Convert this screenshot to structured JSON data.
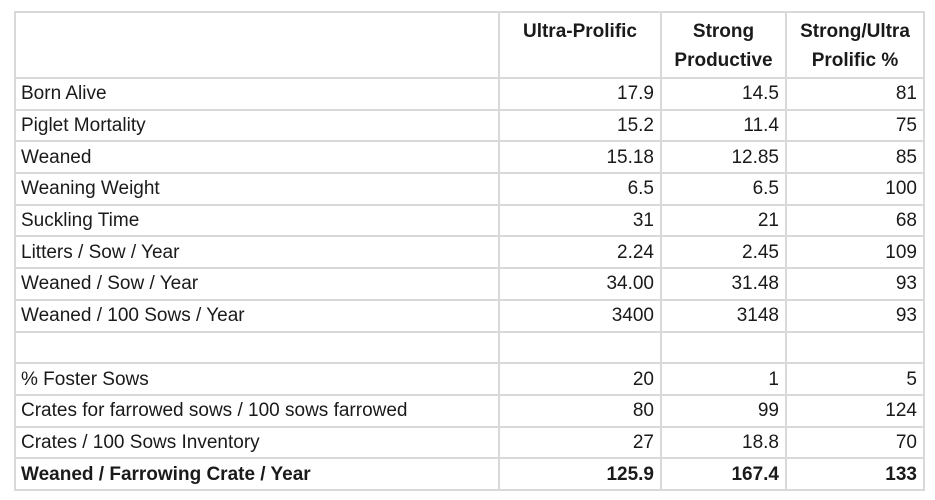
{
  "colors": {
    "border": "#d9d9d9",
    "text": "#1a1a1a",
    "background": "#ffffff"
  },
  "table": {
    "header": {
      "metric": "",
      "ultra_prolific_lines": [
        "Ultra-Prolific"
      ],
      "strong_productive_lines": [
        "Strong",
        "Productive"
      ],
      "ratio_lines": [
        "Strong/Ultra",
        "Prolific %"
      ]
    },
    "rows": [
      {
        "label": "Born Alive",
        "ultra_prolific": "17.9",
        "strong_productive": "14.5",
        "ratio_pct": "81",
        "bold": false,
        "empty": false
      },
      {
        "label": "Piglet Mortality",
        "ultra_prolific": "15.2",
        "strong_productive": "11.4",
        "ratio_pct": "75",
        "bold": false,
        "empty": false
      },
      {
        "label": "Weaned",
        "ultra_prolific": "15.18",
        "strong_productive": "12.85",
        "ratio_pct": "85",
        "bold": false,
        "empty": false
      },
      {
        "label": "Weaning Weight",
        "ultra_prolific": "6.5",
        "strong_productive": "6.5",
        "ratio_pct": "100",
        "bold": false,
        "empty": false
      },
      {
        "label": "Suckling Time",
        "ultra_prolific": "31",
        "strong_productive": "21",
        "ratio_pct": "68",
        "bold": false,
        "empty": false
      },
      {
        "label": "Litters / Sow / Year",
        "ultra_prolific": "2.24",
        "strong_productive": "2.45",
        "ratio_pct": "109",
        "bold": false,
        "empty": false
      },
      {
        "label": "Weaned / Sow / Year",
        "ultra_prolific": "34.00",
        "strong_productive": "31.48",
        "ratio_pct": "93",
        "bold": false,
        "empty": false
      },
      {
        "label": "Weaned / 100 Sows / Year",
        "ultra_prolific": "3400",
        "strong_productive": "3148",
        "ratio_pct": "93",
        "bold": false,
        "empty": false
      },
      {
        "label": "",
        "ultra_prolific": "",
        "strong_productive": "",
        "ratio_pct": "",
        "bold": false,
        "empty": true
      },
      {
        "label": "% Foster Sows",
        "ultra_prolific": "20",
        "strong_productive": "1",
        "ratio_pct": "5",
        "bold": false,
        "empty": false
      },
      {
        "label": "Crates for farrowed sows / 100 sows farrowed",
        "ultra_prolific": "80",
        "strong_productive": "99",
        "ratio_pct": "124",
        "bold": false,
        "empty": false
      },
      {
        "label": "Crates / 100 Sows Inventory",
        "ultra_prolific": "27",
        "strong_productive": "18.8",
        "ratio_pct": "70",
        "bold": false,
        "empty": false
      },
      {
        "label": "Weaned / Farrowing Crate / Year",
        "ultra_prolific": "125.9",
        "strong_productive": "167.4",
        "ratio_pct": "133",
        "bold": true,
        "empty": false
      }
    ]
  },
  "chart_data": {
    "type": "table",
    "columns": [
      "",
      "Ultra-Prolific",
      "Strong Productive",
      "Strong/Ultra Prolific %"
    ],
    "rows": [
      [
        "Born Alive",
        17.9,
        14.5,
        81
      ],
      [
        "Piglet Mortality",
        15.2,
        11.4,
        75
      ],
      [
        "Weaned",
        15.18,
        12.85,
        85
      ],
      [
        "Weaning Weight",
        6.5,
        6.5,
        100
      ],
      [
        "Suckling Time",
        31,
        21,
        68
      ],
      [
        "Litters / Sow / Year",
        2.24,
        2.45,
        109
      ],
      [
        "Weaned / Sow / Year",
        "34.00",
        31.48,
        93
      ],
      [
        "Weaned / 100 Sows / Year",
        3400,
        3148,
        93
      ],
      [
        "",
        "",
        "",
        ""
      ],
      [
        "% Foster Sows",
        20,
        1,
        5
      ],
      [
        "Crates for farrowed sows / 100 sows farrowed",
        80,
        99,
        124
      ],
      [
        "Crates / 100 Sows Inventory",
        27,
        18.8,
        70
      ],
      [
        "Weaned / Farrowing Crate / Year",
        125.9,
        167.4,
        133
      ]
    ],
    "layout_hints": {
      "grid": true,
      "value_alignment": "right",
      "bold_rows": [
        "Weaned / Farrowing Crate / Year"
      ],
      "empty_spacer_row_index": 8
    }
  }
}
